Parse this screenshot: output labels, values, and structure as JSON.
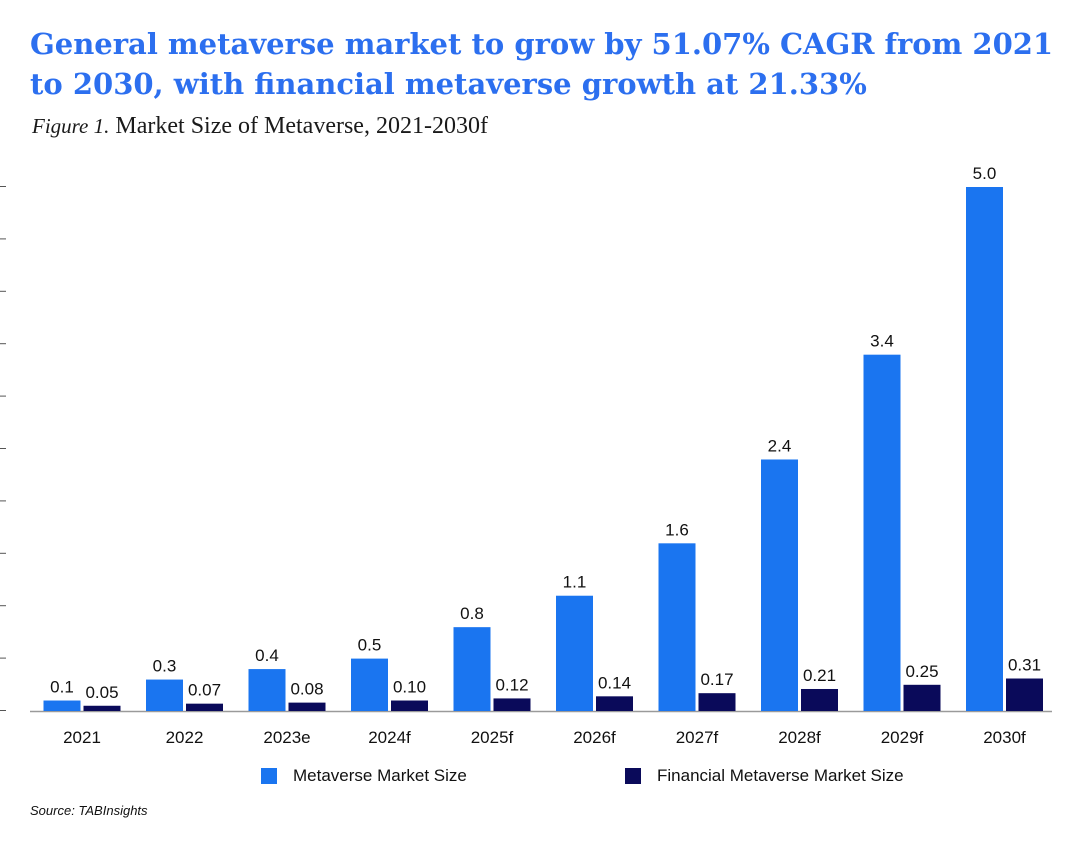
{
  "headline": "General metaverse market to grow by 51.07% CAGR from 2021 to 2030, with financial metaverse growth at 21.33%",
  "figure_label": "Figure 1.",
  "figure_title": "Market Size of Metaverse, 2021-2030f",
  "source": "Source: TABInsights",
  "colors": {
    "metaverse": "#1a75f0",
    "financial": "#0a0a5a",
    "headline": "#2c6fef"
  },
  "chart_data": {
    "type": "bar",
    "categories": [
      "2021",
      "2022",
      "2023e",
      "2024f",
      "2025f",
      "2026f",
      "2027f",
      "2028f",
      "2029f",
      "2030f"
    ],
    "series": [
      {
        "name": "Metaverse Market Size",
        "values": [
          0.1,
          0.3,
          0.4,
          0.5,
          0.8,
          1.1,
          1.6,
          2.4,
          3.4,
          5.0
        ],
        "labels": [
          "0.1",
          "0.3",
          "0.4",
          "0.5",
          "0.8",
          "1.1",
          "1.6",
          "2.4",
          "3.4",
          "5.0"
        ]
      },
      {
        "name": "Financial Metaverse Market Size",
        "values": [
          0.05,
          0.07,
          0.08,
          0.1,
          0.12,
          0.14,
          0.17,
          0.21,
          0.25,
          0.31
        ],
        "labels": [
          "0.05",
          "0.07",
          "0.08",
          "0.10",
          "0.12",
          "0.14",
          "0.17",
          "0.21",
          "0.25",
          "0.31"
        ]
      }
    ],
    "ylim": [
      0,
      5.2
    ],
    "grid": false,
    "legend_position": "bottom"
  }
}
